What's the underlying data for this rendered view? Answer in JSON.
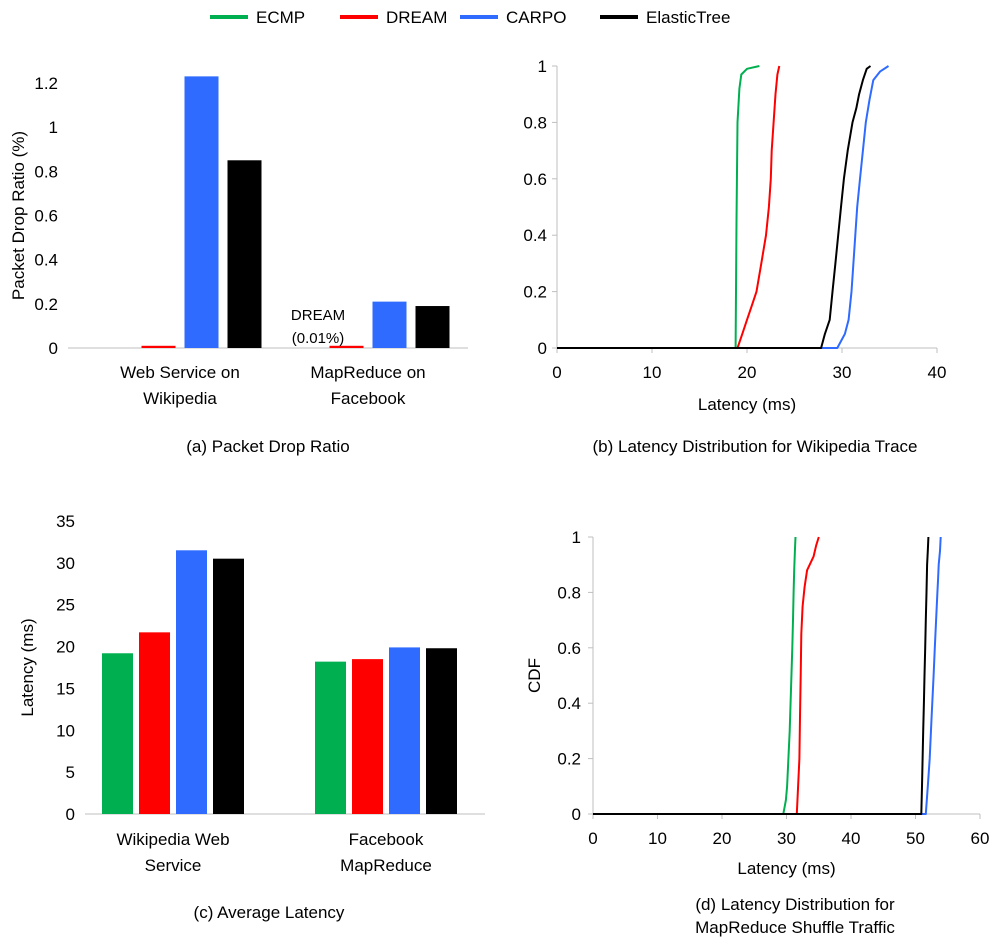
{
  "legend": [
    {
      "name": "ECMP",
      "color": "#00b050"
    },
    {
      "name": "DREAM",
      "color": "#ff0000"
    },
    {
      "name": "CARPO",
      "color": "#2f6bff"
    },
    {
      "name": "ElasticTree",
      "color": "#000000"
    }
  ],
  "chart_data": [
    {
      "type": "bar",
      "caption": "(a) Packet Drop Ratio",
      "ylabel": "Packet Drop Ratio (%)",
      "ylim": [
        0,
        1.2
      ],
      "yticks": [
        "0",
        "0.2",
        "0.4",
        "0.6",
        "0.8",
        "1",
        "1.2"
      ],
      "categories": [
        [
          "Web Service on",
          "Wikipedia"
        ],
        [
          "MapReduce on",
          "Facebook"
        ]
      ],
      "series": [
        {
          "name": "ECMP",
          "values": [
            0,
            0
          ]
        },
        {
          "name": "DREAM",
          "values": [
            0.01,
            0.01
          ]
        },
        {
          "name": "CARPO",
          "values": [
            1.23,
            0.21
          ]
        },
        {
          "name": "ElasticTree",
          "values": [
            0.85,
            0.19
          ]
        }
      ],
      "annotation": [
        "DREAM",
        "(0.01%)"
      ]
    },
    {
      "type": "line",
      "caption": "(b) Latency Distribution for Wikipedia Trace",
      "xlabel": "Latency (ms)",
      "ylabel": "",
      "xlim": [
        0,
        40
      ],
      "ylim": [
        0,
        1
      ],
      "xticks": [
        "0",
        "10",
        "20",
        "30",
        "40"
      ],
      "yticks": [
        "0",
        "0.2",
        "0.4",
        "0.6",
        "0.8",
        "1"
      ],
      "series": [
        {
          "name": "ECMP",
          "points": [
            [
              18.8,
              0
            ],
            [
              18.9,
              0.45
            ],
            [
              19.0,
              0.8
            ],
            [
              19.2,
              0.92
            ],
            [
              19.4,
              0.97
            ],
            [
              20.0,
              0.99
            ],
            [
              21.3,
              1
            ]
          ]
        },
        {
          "name": "DREAM",
          "points": [
            [
              19.0,
              0
            ],
            [
              19.5,
              0.05
            ],
            [
              20.0,
              0.1
            ],
            [
              20.5,
              0.15
            ],
            [
              21.0,
              0.2
            ],
            [
              21.5,
              0.3
            ],
            [
              22.0,
              0.4
            ],
            [
              22.3,
              0.5
            ],
            [
              22.5,
              0.6
            ],
            [
              22.6,
              0.7
            ],
            [
              22.8,
              0.8
            ],
            [
              23.0,
              0.9
            ],
            [
              23.2,
              0.97
            ],
            [
              23.4,
              1
            ]
          ]
        },
        {
          "name": "CARPO",
          "points": [
            [
              29.5,
              0
            ],
            [
              30.3,
              0.05
            ],
            [
              30.7,
              0.1
            ],
            [
              31.0,
              0.2
            ],
            [
              31.2,
              0.3
            ],
            [
              31.4,
              0.4
            ],
            [
              31.6,
              0.5
            ],
            [
              31.9,
              0.6
            ],
            [
              32.2,
              0.7
            ],
            [
              32.5,
              0.8
            ],
            [
              32.9,
              0.88
            ],
            [
              33.3,
              0.95
            ],
            [
              34.0,
              0.98
            ],
            [
              34.9,
              1
            ]
          ]
        },
        {
          "name": "ElasticTree",
          "points": [
            [
              27.8,
              0
            ],
            [
              28.2,
              0.05
            ],
            [
              28.7,
              0.1
            ],
            [
              29.0,
              0.2
            ],
            [
              29.3,
              0.3
            ],
            [
              29.6,
              0.4
            ],
            [
              29.9,
              0.5
            ],
            [
              30.2,
              0.6
            ],
            [
              30.6,
              0.7
            ],
            [
              31.1,
              0.8
            ],
            [
              31.5,
              0.85
            ],
            [
              31.8,
              0.9
            ],
            [
              32.2,
              0.95
            ],
            [
              32.6,
              0.99
            ],
            [
              33.0,
              1
            ]
          ]
        }
      ]
    },
    {
      "type": "bar",
      "caption": "(c) Average Latency",
      "ylabel": "Latency (ms)",
      "ylim": [
        0,
        35
      ],
      "yticks": [
        "0",
        "5",
        "10",
        "15",
        "20",
        "25",
        "30",
        "35"
      ],
      "categories": [
        [
          "Wikipedia Web",
          "Service"
        ],
        [
          "Facebook",
          "MapReduce"
        ]
      ],
      "series": [
        {
          "name": "ECMP",
          "values": [
            19.2,
            18.2
          ]
        },
        {
          "name": "DREAM",
          "values": [
            21.7,
            18.5
          ]
        },
        {
          "name": "CARPO",
          "values": [
            31.5,
            19.9
          ]
        },
        {
          "name": "ElasticTree",
          "values": [
            30.5,
            19.8
          ]
        }
      ]
    },
    {
      "type": "line",
      "caption": [
        "(d) Latency Distribution for",
        "MapReduce Shuffle Traffic"
      ],
      "xlabel": "Latency (ms)",
      "ylabel": "CDF",
      "xlim": [
        0,
        60
      ],
      "ylim": [
        0,
        1
      ],
      "xticks": [
        "0",
        "10",
        "20",
        "30",
        "40",
        "50",
        "60"
      ],
      "yticks": [
        "0",
        "0.2",
        "0.4",
        "0.6",
        "0.8",
        "1"
      ],
      "series": [
        {
          "name": "ECMP",
          "points": [
            [
              29.5,
              0
            ],
            [
              29.9,
              0.05
            ],
            [
              30.1,
              0.1
            ],
            [
              30.3,
              0.2
            ],
            [
              30.5,
              0.3
            ],
            [
              30.7,
              0.45
            ],
            [
              30.9,
              0.6
            ],
            [
              31.0,
              0.7
            ],
            [
              31.1,
              0.8
            ],
            [
              31.2,
              0.88
            ],
            [
              31.3,
              0.95
            ],
            [
              31.4,
              1
            ]
          ]
        },
        {
          "name": "DREAM",
          "points": [
            [
              31.6,
              0
            ],
            [
              31.8,
              0.1
            ],
            [
              32.0,
              0.2
            ],
            [
              32.1,
              0.35
            ],
            [
              32.2,
              0.5
            ],
            [
              32.3,
              0.65
            ],
            [
              32.5,
              0.75
            ],
            [
              32.8,
              0.82
            ],
            [
              33.2,
              0.88
            ],
            [
              33.6,
              0.9
            ],
            [
              34.2,
              0.93
            ],
            [
              34.6,
              0.97
            ],
            [
              35.0,
              1
            ]
          ]
        },
        {
          "name": "CARPO",
          "points": [
            [
              51.6,
              0
            ],
            [
              51.9,
              0.1
            ],
            [
              52.2,
              0.2
            ],
            [
              52.5,
              0.35
            ],
            [
              52.8,
              0.5
            ],
            [
              53.0,
              0.6
            ],
            [
              53.2,
              0.7
            ],
            [
              53.4,
              0.8
            ],
            [
              53.5,
              0.85
            ],
            [
              53.6,
              0.9
            ],
            [
              53.8,
              0.95
            ],
            [
              53.9,
              1
            ]
          ]
        },
        {
          "name": "ElasticTree",
          "points": [
            [
              50.9,
              0
            ],
            [
              51.0,
              0.1
            ],
            [
              51.1,
              0.2
            ],
            [
              51.2,
              0.3
            ],
            [
              51.3,
              0.4
            ],
            [
              51.4,
              0.5
            ],
            [
              51.5,
              0.6
            ],
            [
              51.6,
              0.7
            ],
            [
              51.7,
              0.8
            ],
            [
              51.8,
              0.9
            ],
            [
              51.9,
              0.95
            ],
            [
              52.0,
              1
            ]
          ]
        }
      ]
    }
  ]
}
